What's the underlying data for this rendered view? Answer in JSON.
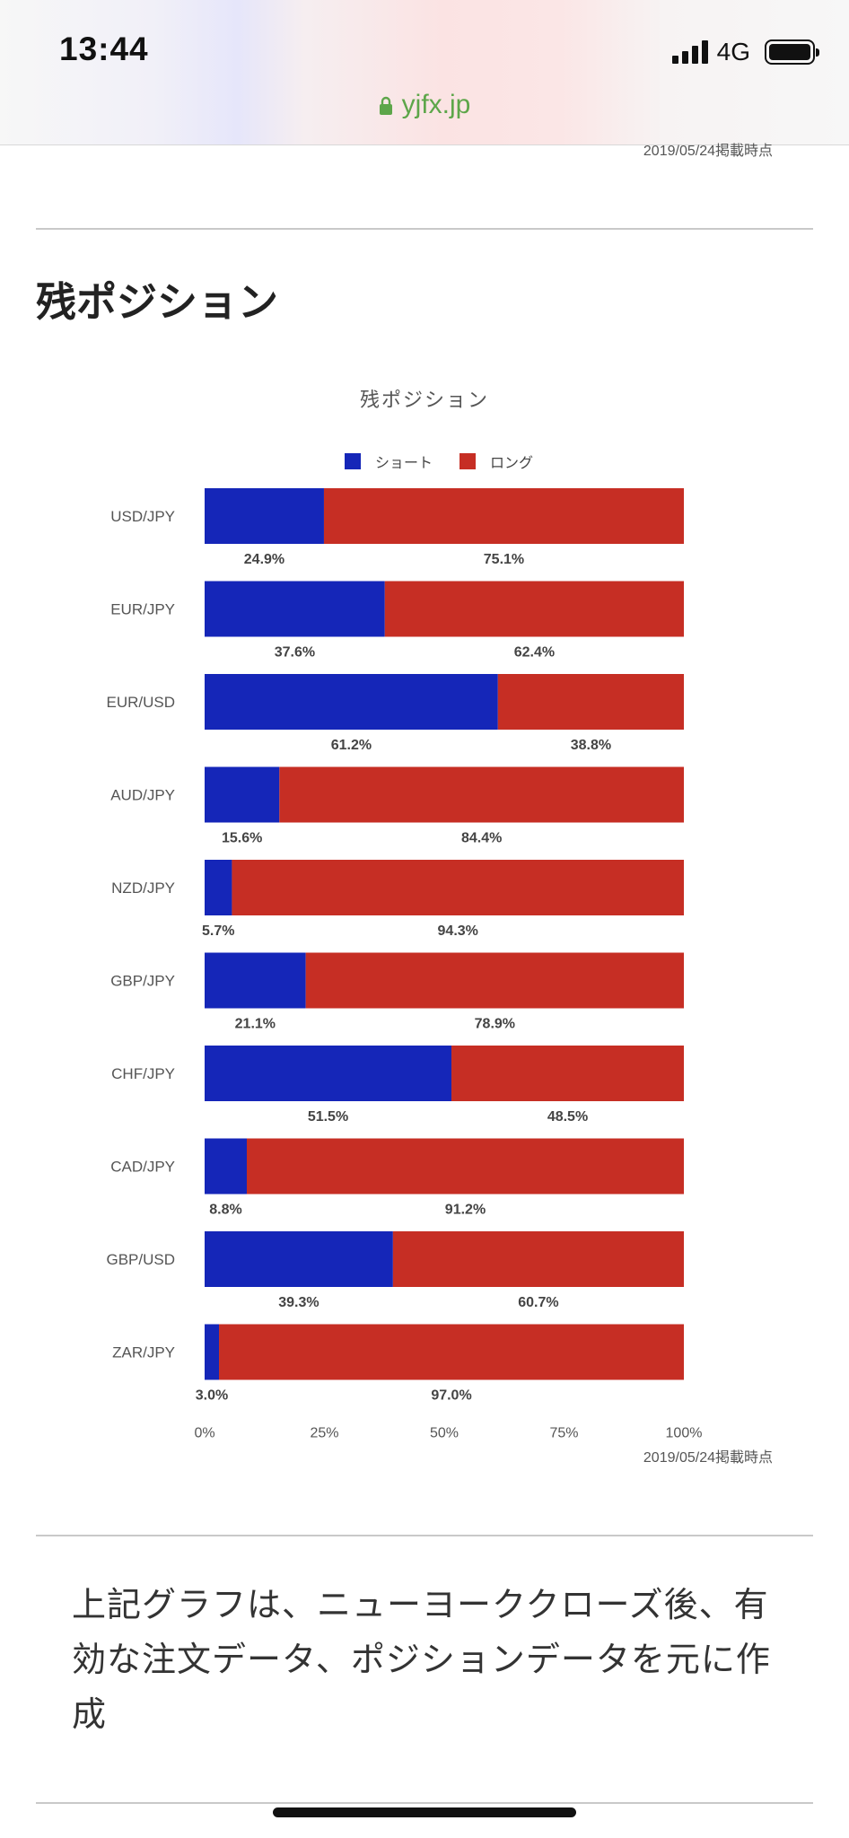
{
  "status_bar": {
    "time": "13:44",
    "network": "4G"
  },
  "browser": {
    "url": "yjfx.jp"
  },
  "timestamp_top": "2019/05/24掲載時点",
  "section_title": "残ポジション",
  "colors": {
    "short": "#1526b8",
    "long": "#c62e24"
  },
  "chart_data": {
    "type": "bar",
    "orientation": "horizontal",
    "stacked": "percent",
    "title": "残ポジション",
    "legend": [
      "ショート",
      "ロング"
    ],
    "legend_position": "top",
    "categories": [
      "USD/JPY",
      "EUR/JPY",
      "EUR/USD",
      "AUD/JPY",
      "NZD/JPY",
      "GBP/JPY",
      "CHF/JPY",
      "CAD/JPY",
      "GBP/USD",
      "ZAR/JPY"
    ],
    "series": [
      {
        "name": "ショート",
        "values": [
          24.9,
          37.6,
          61.2,
          15.6,
          5.7,
          21.1,
          51.5,
          8.8,
          39.3,
          3.0
        ]
      },
      {
        "name": "ロング",
        "values": [
          75.1,
          62.4,
          38.8,
          84.4,
          94.3,
          78.9,
          48.5,
          91.2,
          60.7,
          97.0
        ]
      }
    ],
    "xlim": [
      0,
      100
    ],
    "x_ticks": [
      "0%",
      "25%",
      "50%",
      "75%",
      "100%"
    ],
    "value_suffix": "%",
    "annotation": "2019/05/24掲載時点"
  },
  "note": "上記グラフは、ニューヨーククローズ後、有効な注文データ、ポジションデータを元に作成"
}
